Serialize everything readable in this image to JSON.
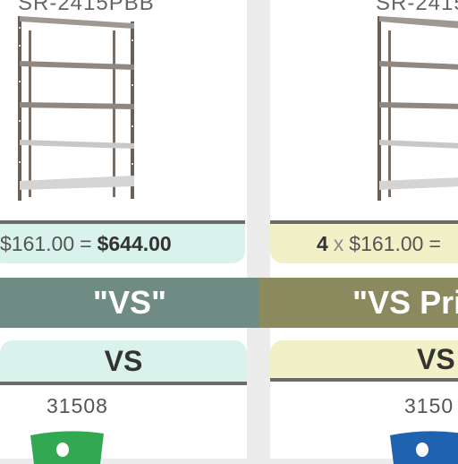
{
  "colors": {
    "mint": "#d9f2ec",
    "cream": "#f2f0c6",
    "banner_left": "#6f8c84",
    "banner_right": "#8a8a5e",
    "bin_green": "#32a852",
    "bin_blue": "#1f63b0"
  },
  "left": {
    "top_sku": "SR-2415PBB",
    "price_line": {
      "qty": "",
      "unit_price": "$161.00",
      "equals": "=",
      "total": "$644.00"
    },
    "banner_title": "\"VS\"",
    "tab_label": "VS",
    "sku": "31508",
    "bin_icon": "green-bin-icon"
  },
  "right": {
    "top_sku": "SR-2415",
    "price_line": {
      "qty": "4",
      "times": "x",
      "unit_price": "$161.00",
      "equals": "="
    },
    "banner_title": "\"VS Pri",
    "tab_label": "VS",
    "sku": "3150",
    "bin_icon": "blue-bin-icon"
  }
}
